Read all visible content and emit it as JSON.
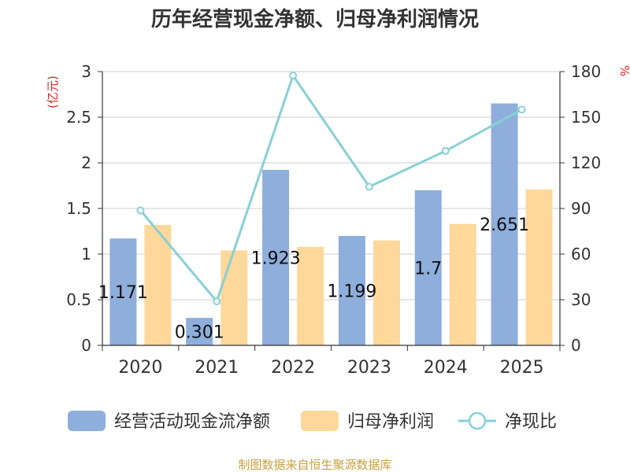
{
  "title": "历年经营现金净额、归母净利润情况",
  "source": "制图数据来自恒生聚源数据库",
  "chart_data": {
    "type": "bar",
    "categories": [
      "2020",
      "2021",
      "2022",
      "2023",
      "2024",
      "2025"
    ],
    "series": [
      {
        "name": "经营活动现金流净额",
        "type": "bar",
        "axis": "left",
        "color": "#8eaedb",
        "values": [
          1.171,
          0.301,
          1.923,
          1.199,
          1.7,
          2.651
        ],
        "labels": [
          "1.171",
          "0.301",
          "1.923",
          "1.199",
          "1.7",
          "2.651"
        ]
      },
      {
        "name": "归母净利润",
        "type": "bar",
        "axis": "left",
        "color": "#fdd89a",
        "values": [
          1.32,
          1.04,
          1.08,
          1.15,
          1.33,
          1.71
        ]
      },
      {
        "name": "净现比",
        "type": "line",
        "axis": "right",
        "color": "#88d0d6",
        "values": [
          88.7,
          28.9,
          177.4,
          104.3,
          127.8,
          155.0
        ]
      }
    ],
    "left_axis": {
      "unit": "(亿元)",
      "ylim": [
        0,
        3
      ],
      "ticks": [
        "0",
        "0.5",
        "1",
        "1.5",
        "2",
        "2.5",
        "3"
      ]
    },
    "right_axis": {
      "unit": "%",
      "ylim": [
        0,
        180
      ],
      "ticks": [
        "0",
        "30",
        "60",
        "90",
        "120",
        "150",
        "180"
      ]
    },
    "grid": true,
    "legend": "bottom"
  }
}
